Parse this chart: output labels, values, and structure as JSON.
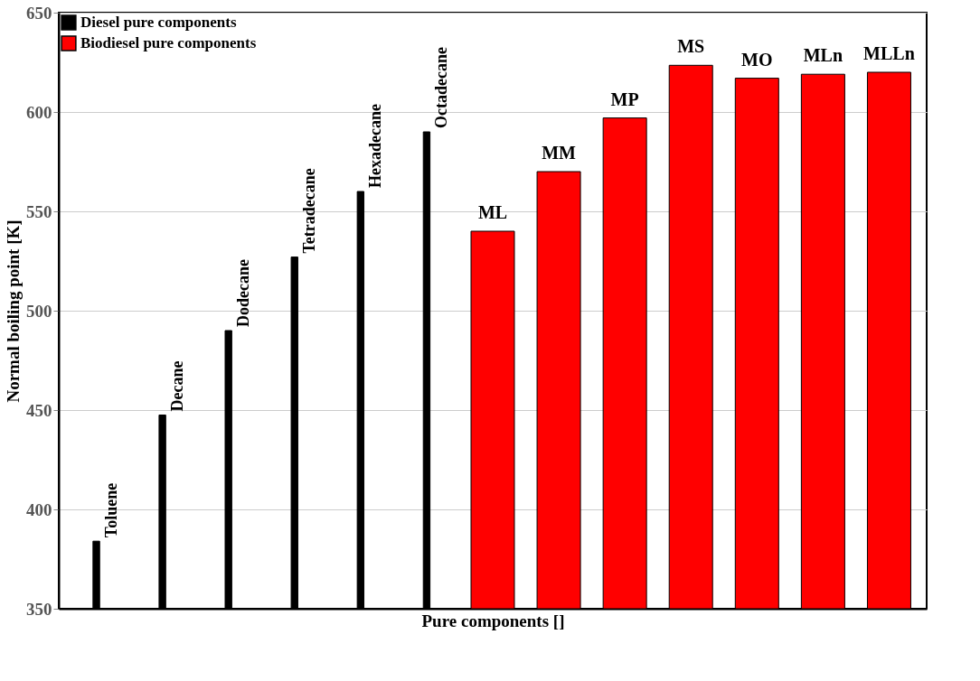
{
  "chart_data": {
    "type": "bar",
    "xlabel": "Pure components []",
    "ylabel": "Normal boiling point [K]",
    "categories": [
      "Toluene",
      "Decane",
      "Dodecane",
      "Tetradecane",
      "Hexadecane",
      "Octadecane",
      "ML",
      "MM",
      "MP",
      "MS",
      "MO",
      "MLn",
      "MLLn"
    ],
    "series": [
      {
        "name": "Diesel pure components",
        "color": "#000000",
        "values": [
          384,
          447.5,
          490,
          527,
          560,
          590,
          null,
          null,
          null,
          null,
          null,
          null,
          null
        ]
      },
      {
        "name": "Biodiesel pure components",
        "color": "#ff0000",
        "values": [
          null,
          null,
          null,
          null,
          null,
          null,
          540,
          570,
          597,
          623.5,
          617,
          619,
          620
        ]
      }
    ],
    "ylim": [
      350,
      650
    ],
    "yticks": [
      350,
      400,
      450,
      500,
      550,
      600,
      650
    ],
    "grid": "y",
    "legend": "top left",
    "tick_labels": "y"
  }
}
